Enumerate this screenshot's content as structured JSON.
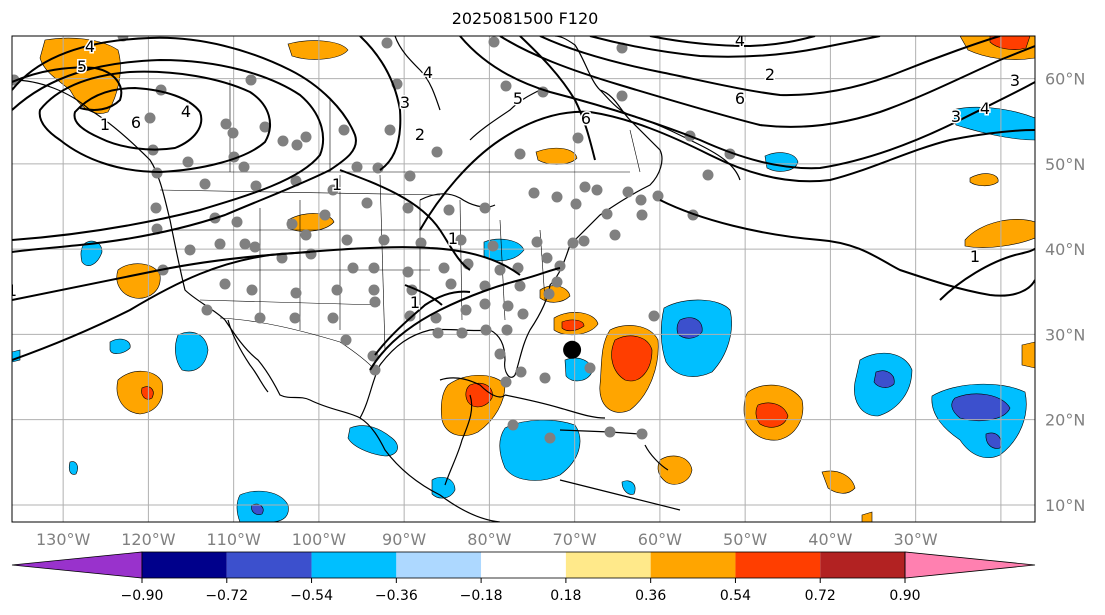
{
  "title": "2025081500 F120",
  "lat_labels": [
    "60°N",
    "50°N",
    "40°N",
    "30°N",
    "20°N",
    "10°N"
  ],
  "lat_values": [
    60,
    50,
    40,
    30,
    20,
    10
  ],
  "lon_labels": [
    "130°W",
    "120°W",
    "110°W",
    "100°W",
    "90°W",
    "80°W",
    "70°W",
    "60°W",
    "50°W",
    "40°W",
    "30°W"
  ],
  "lon_values": [
    -130,
    -120,
    -110,
    -100,
    -90,
    -80,
    -70,
    -60,
    -50,
    -40,
    -30
  ],
  "map_extent": {
    "lon_min": -136,
    "lon_max": -16,
    "lat_min": 8,
    "lat_max": 65
  },
  "colorbar": {
    "ticks": [
      "−0.90",
      "−0.72",
      "−0.54",
      "−0.36",
      "−0.18",
      "0.18",
      "0.36",
      "0.54",
      "0.72",
      "0.90"
    ],
    "colors": [
      "#9932cc",
      "#00008b",
      "#3c50cd",
      "#00bfff",
      "#add8ff",
      "#ffffff",
      "#ffe98a",
      "#ffa500",
      "#ff3e00",
      "#b22222",
      "#ff80b0"
    ]
  },
  "contour_labels": [
    "4",
    "5",
    "6",
    "4",
    "1",
    "1",
    "2",
    "3",
    "4",
    "5",
    "6",
    "2",
    "3",
    "4",
    "3",
    "4",
    "1",
    "1",
    "1",
    "1",
    "6"
  ],
  "marker": {
    "lon": -70.3,
    "lat": 28.2
  }
}
